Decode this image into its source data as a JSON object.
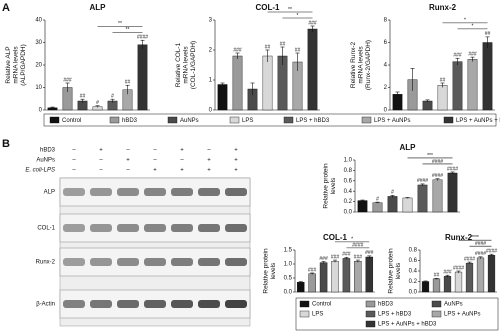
{
  "panels": [
    "A",
    "B"
  ],
  "blot": {
    "conditions": [
      {
        "name": "hBD3",
        "signs": [
          "–",
          "+",
          "–",
          "–",
          "+",
          "–",
          "+"
        ]
      },
      {
        "name": "AuNPs",
        "signs": [
          "–",
          "–",
          "+",
          "–",
          "–",
          "+",
          "+"
        ]
      },
      {
        "name": "E. coli-LPS",
        "signs": [
          "–",
          "–",
          "–",
          "+",
          "+",
          "+",
          "+"
        ]
      }
    ],
    "bands": [
      "ALP",
      "COL-1",
      "Runx-2",
      "β-Actin"
    ]
  },
  "chart_data": [
    {
      "type": "bar",
      "title": "ALP",
      "ylabel": [
        "Relative ALP",
        "mRNA levels",
        "(ALP/GAPDH)"
      ],
      "categories": [
        "Control",
        "hBD3",
        "AuNPs",
        "LPS",
        "LPS + hBD3",
        "LPS + AuNPs",
        "LPS + AuNPs + hBD3"
      ],
      "colors": [
        "#111111",
        "#9a9a9a",
        "#4a4a4a",
        "#d8d8d8",
        "#5a5a5a",
        "#a8a8a8",
        "#333333"
      ],
      "values": [
        1,
        10,
        4,
        1.5,
        4,
        9,
        29
      ],
      "errors": [
        0.3,
        2,
        0.8,
        0.4,
        0.8,
        2,
        2
      ],
      "bar_labels": [
        null,
        "###",
        "##",
        "#",
        "#",
        "##",
        "####"
      ],
      "brackets": [
        "**",
        "**"
      ],
      "ylim": [
        0,
        40
      ],
      "yticks": [
        0,
        10,
        20,
        30,
        40
      ]
    },
    {
      "type": "bar",
      "title": "COL-1",
      "ylabel": [
        "Relative COL-1",
        "mRNA levels",
        "(COL-1/GAPDH)"
      ],
      "categories": [
        "Control",
        "hBD3",
        "AuNPs",
        "LPS",
        "LPS + hBD3",
        "LPS + AuNPs",
        "LPS + AuNPs + hBD3"
      ],
      "colors": [
        "#111111",
        "#9a9a9a",
        "#4a4a4a",
        "#d8d8d8",
        "#5a5a5a",
        "#a8a8a8",
        "#333333"
      ],
      "values": [
        0.85,
        1.8,
        0.7,
        1.8,
        1.8,
        1.6,
        2.7
      ],
      "errors": [
        0.05,
        0.1,
        0.2,
        0.2,
        0.3,
        0.3,
        0.1
      ],
      "bar_labels": [
        null,
        "###",
        null,
        "##",
        "##",
        "##",
        "###"
      ],
      "brackets": [
        "*",
        "**"
      ],
      "ylim": [
        0,
        3
      ],
      "yticks": [
        0,
        1,
        2,
        3
      ]
    },
    {
      "type": "bar",
      "title": "Runx-2",
      "ylabel": [
        "Relative Runx-2",
        "mRNA levels",
        "(Runx-2/GAPDH)"
      ],
      "categories": [
        "Control",
        "hBD3",
        "AuNPs",
        "LPS",
        "LPS + hBD3",
        "LPS + AuNPs",
        "LPS + AuNPs + hBD3"
      ],
      "colors": [
        "#111111",
        "#9a9a9a",
        "#4a4a4a",
        "#d8d8d8",
        "#5a5a5a",
        "#a8a8a8",
        "#333333"
      ],
      "values": [
        1.4,
        2.7,
        0.8,
        2.2,
        4.3,
        4.5,
        6.0
      ],
      "errors": [
        0.2,
        1,
        0.1,
        0.2,
        0.3,
        0.2,
        0.5
      ],
      "bar_labels": [
        null,
        null,
        null,
        "##",
        "###",
        "###",
        "##"
      ],
      "brackets": [
        "*",
        "*"
      ],
      "ylim": [
        0,
        8
      ],
      "yticks": [
        0,
        2,
        4,
        6,
        8
      ]
    },
    {
      "type": "bar",
      "title": "ALP",
      "ylabel": [
        "Relative protein",
        "levels"
      ],
      "categories": [
        "Control",
        "hBD3",
        "AuNPs",
        "LPS",
        "LPS + hBD3",
        "LPS + AuNPs",
        "LPS + AuNPs + hBD3"
      ],
      "colors": [
        "#111111",
        "#9a9a9a",
        "#4a4a4a",
        "#d8d8d8",
        "#5a5a5a",
        "#a8a8a8",
        "#333333"
      ],
      "values": [
        0.22,
        0.18,
        0.3,
        0.27,
        0.52,
        0.62,
        0.75
      ],
      "errors": [
        0.01,
        0.01,
        0.02,
        0.01,
        0.02,
        0.02,
        0.02
      ],
      "bar_labels": [
        null,
        "#",
        "#",
        null,
        "####",
        "####",
        "####"
      ],
      "brackets": [
        "####",
        "***"
      ],
      "ylim": [
        0,
        1
      ],
      "yticks": [
        {
          "value": 0,
          "label": "0.0"
        },
        {
          "value": 0.2,
          "label": "0.2"
        },
        {
          "value": 0.4,
          "label": "0.4"
        },
        {
          "value": 0.6,
          "label": "0.6"
        },
        {
          "value": 0.8,
          "label": "0.8"
        },
        {
          "value": 1,
          "label": "1.0"
        }
      ]
    },
    {
      "type": "bar",
      "title": "COL-1",
      "ylabel": [
        "Relative protein",
        "levels"
      ],
      "categories": [
        "Control",
        "hBD3",
        "AuNPs",
        "LPS",
        "LPS + hBD3",
        "LPS + AuNPs",
        "LPS + AuNPs + hBD3"
      ],
      "colors": [
        "#111111",
        "#9a9a9a",
        "#4a4a4a",
        "#d8d8d8",
        "#5a5a5a",
        "#a8a8a8",
        "#333333"
      ],
      "values": [
        0.35,
        0.65,
        1.05,
        1.1,
        1.2,
        1.1,
        1.25
      ],
      "errors": [
        0.02,
        0.03,
        0.04,
        0.04,
        0.04,
        0.04,
        0.04
      ],
      "bar_labels": [
        null,
        "###",
        "###",
        "###",
        "###",
        "###",
        "###"
      ],
      "brackets": [
        "####",
        "*"
      ],
      "ylim": [
        0,
        1.5
      ],
      "yticks": [
        {
          "value": 0,
          "label": "0.0"
        },
        {
          "value": 0.5,
          "label": "0.5"
        },
        {
          "value": 1,
          "label": "1.0"
        },
        {
          "value": 1.5,
          "label": "1.5"
        }
      ]
    },
    {
      "type": "bar",
      "title": "Runx-2",
      "ylabel": [
        "Relative protein",
        "levels"
      ],
      "categories": [
        "Control",
        "hBD3",
        "AuNPs",
        "LPS",
        "LPS + hBD3",
        "LPS + AuNPs",
        "LPS + AuNPs + hBD3"
      ],
      "colors": [
        "#111111",
        "#9a9a9a",
        "#4a4a4a",
        "#d8d8d8",
        "#5a5a5a",
        "#a8a8a8",
        "#333333"
      ],
      "values": [
        0.2,
        0.25,
        0.3,
        0.38,
        0.55,
        0.65,
        0.7
      ],
      "errors": [
        0.01,
        0.01,
        0.02,
        0.02,
        0.02,
        0.02,
        0.02
      ],
      "bar_labels": [
        null,
        "##",
        "###",
        "####",
        "####",
        "####",
        "####"
      ],
      "brackets": [
        "####",
        "****"
      ],
      "ylim": [
        0,
        0.8
      ],
      "yticks": [
        {
          "value": 0,
          "label": "0.0"
        },
        {
          "value": 0.2,
          "label": "0.2"
        },
        {
          "value": 0.4,
          "label": "0.4"
        },
        {
          "value": 0.6,
          "label": "0.6"
        },
        {
          "value": 0.8,
          "label": "0.8"
        }
      ]
    }
  ]
}
